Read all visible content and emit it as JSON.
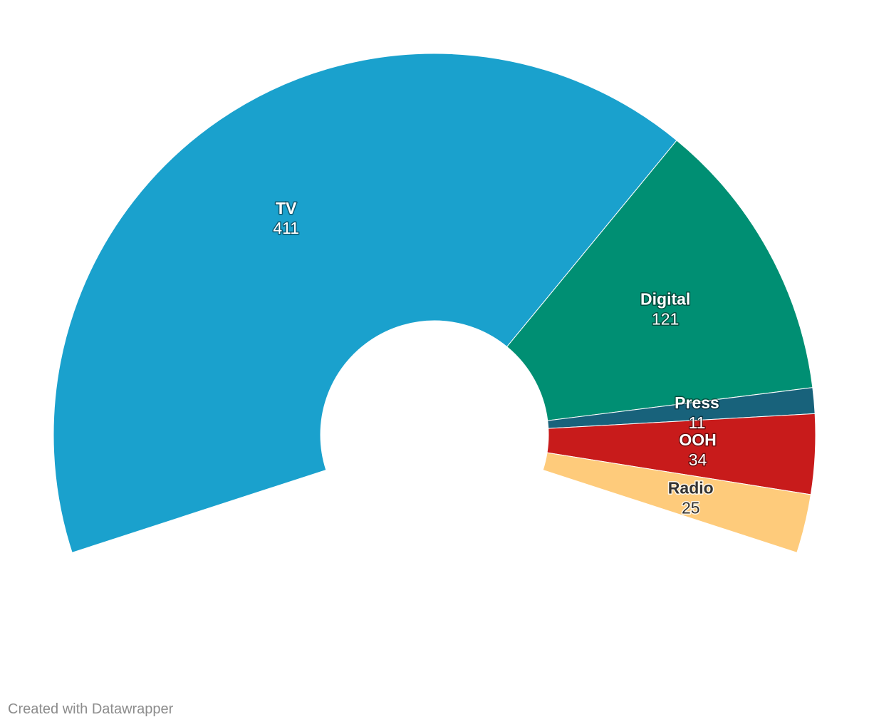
{
  "chart_data": {
    "type": "pie",
    "variant": "semi-donut",
    "categories": [
      "TV",
      "Digital",
      "Press",
      "OOH",
      "Radio"
    ],
    "values": [
      411,
      121,
      11,
      34,
      25
    ],
    "colors": [
      "#1aa1cd",
      "#008f73",
      "#18627b",
      "#c81b1b",
      "#fecb7b"
    ],
    "label_text_colors": [
      "#ffffff",
      "#ffffff",
      "#ffffff",
      "#ffffff",
      "#333333"
    ],
    "title": "",
    "start_angle_deg": 252,
    "sweep_deg": 216
  },
  "footer": {
    "credit": "Created with Datawrapper"
  }
}
